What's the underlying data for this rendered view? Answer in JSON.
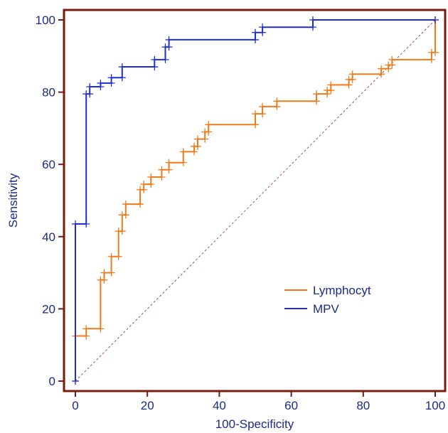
{
  "chart_data": {
    "type": "line",
    "title": "",
    "xlabel": "100-Specificity",
    "ylabel": "Sensitivity",
    "xlim": [
      0,
      100
    ],
    "ylim": [
      0,
      100
    ],
    "xticks": [
      0,
      20,
      40,
      60,
      80,
      100
    ],
    "yticks": [
      0,
      20,
      40,
      60,
      80,
      100
    ],
    "grid": false,
    "legend_position": "lower-right",
    "reference_line": {
      "from": [
        0,
        0
      ],
      "to": [
        100,
        100
      ],
      "style": "dashed",
      "color": "#a05050"
    },
    "colors": {
      "frame": "#7a1b10",
      "tick_labels": "#1a2a8c",
      "axis_title": "#1a2a8c"
    },
    "series": [
      {
        "name": "Lymphocyt",
        "color": "#f07a1a",
        "x": [
          0,
          0,
          3,
          3,
          7,
          7,
          8,
          8,
          10,
          10,
          12,
          12,
          13,
          13,
          14,
          14,
          18,
          18,
          19,
          19,
          21,
          21,
          24,
          24,
          26,
          26,
          30,
          30,
          33,
          33,
          34,
          34,
          36,
          36,
          37,
          37,
          50,
          50,
          52,
          52,
          56,
          56,
          67,
          67,
          70,
          70,
          71,
          71,
          76,
          76,
          77,
          77,
          85,
          85,
          87,
          87,
          88,
          88,
          99,
          99,
          100,
          100
        ],
        "y": [
          0,
          12.5,
          12.5,
          14.5,
          14.5,
          28,
          28,
          30,
          30,
          34.5,
          34.5,
          41.5,
          41.5,
          46,
          46,
          49,
          49,
          53,
          53,
          54.5,
          54.5,
          56.5,
          56.5,
          58.5,
          58.5,
          60.5,
          60.5,
          63.5,
          63.5,
          65,
          65,
          67,
          67,
          69,
          69,
          71,
          71,
          74,
          74,
          76,
          76,
          77.5,
          77.5,
          79.5,
          79.5,
          80.5,
          80.5,
          82,
          82,
          83.5,
          83.5,
          85,
          85,
          86.5,
          86.5,
          87.5,
          87.5,
          89,
          89,
          91,
          91,
          100
        ]
      },
      {
        "name": "MPV",
        "color": "#1e2fd6",
        "x": [
          0,
          0,
          3,
          3,
          4,
          4,
          7,
          7,
          10,
          10,
          13,
          13,
          22,
          22,
          25,
          25,
          26,
          26,
          50,
          50,
          52,
          52,
          66,
          66,
          100
        ],
        "y": [
          0,
          43.5,
          43.5,
          79.5,
          79.5,
          81.5,
          81.5,
          82.5,
          82.5,
          84,
          84,
          87,
          87,
          89,
          89,
          92.5,
          92.5,
          94.5,
          94.5,
          96.5,
          96.5,
          98,
          98,
          100,
          100
        ]
      }
    ]
  }
}
